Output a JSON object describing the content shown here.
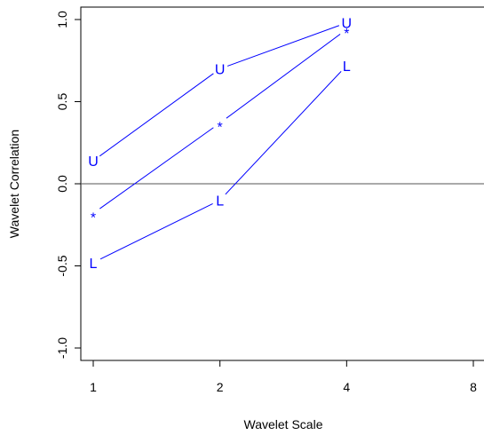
{
  "chart_data": {
    "type": "line",
    "xlabel": "Wavelet Scale",
    "ylabel": "Wavelet Correlation",
    "x_scale": "log2",
    "xlim": [
      1,
      8
    ],
    "ylim": [
      -1.0,
      1.0
    ],
    "x_ticks": [
      1,
      2,
      4,
      8
    ],
    "x_tick_labels": [
      "1",
      "2",
      "4",
      "8"
    ],
    "y_ticks": [
      -1.0,
      -0.5,
      0.0,
      0.5,
      1.0
    ],
    "y_tick_labels": [
      "-1.0",
      "-0.5",
      "0.0",
      "0.5",
      "1.0"
    ],
    "reference_line": {
      "y": 0,
      "color": "#555555"
    },
    "series": [
      {
        "marker": "U",
        "x": [
          1,
          2,
          4
        ],
        "y": [
          0.14,
          0.7,
          0.98
        ]
      },
      {
        "marker": "*",
        "x": [
          1,
          2,
          4
        ],
        "y": [
          -0.18,
          0.37,
          0.94
        ]
      },
      {
        "marker": "L",
        "x": [
          1,
          2,
          4
        ],
        "y": [
          -0.48,
          -0.1,
          0.72
        ]
      }
    ],
    "color": "#0000ff",
    "grid": false,
    "legend": "none"
  }
}
